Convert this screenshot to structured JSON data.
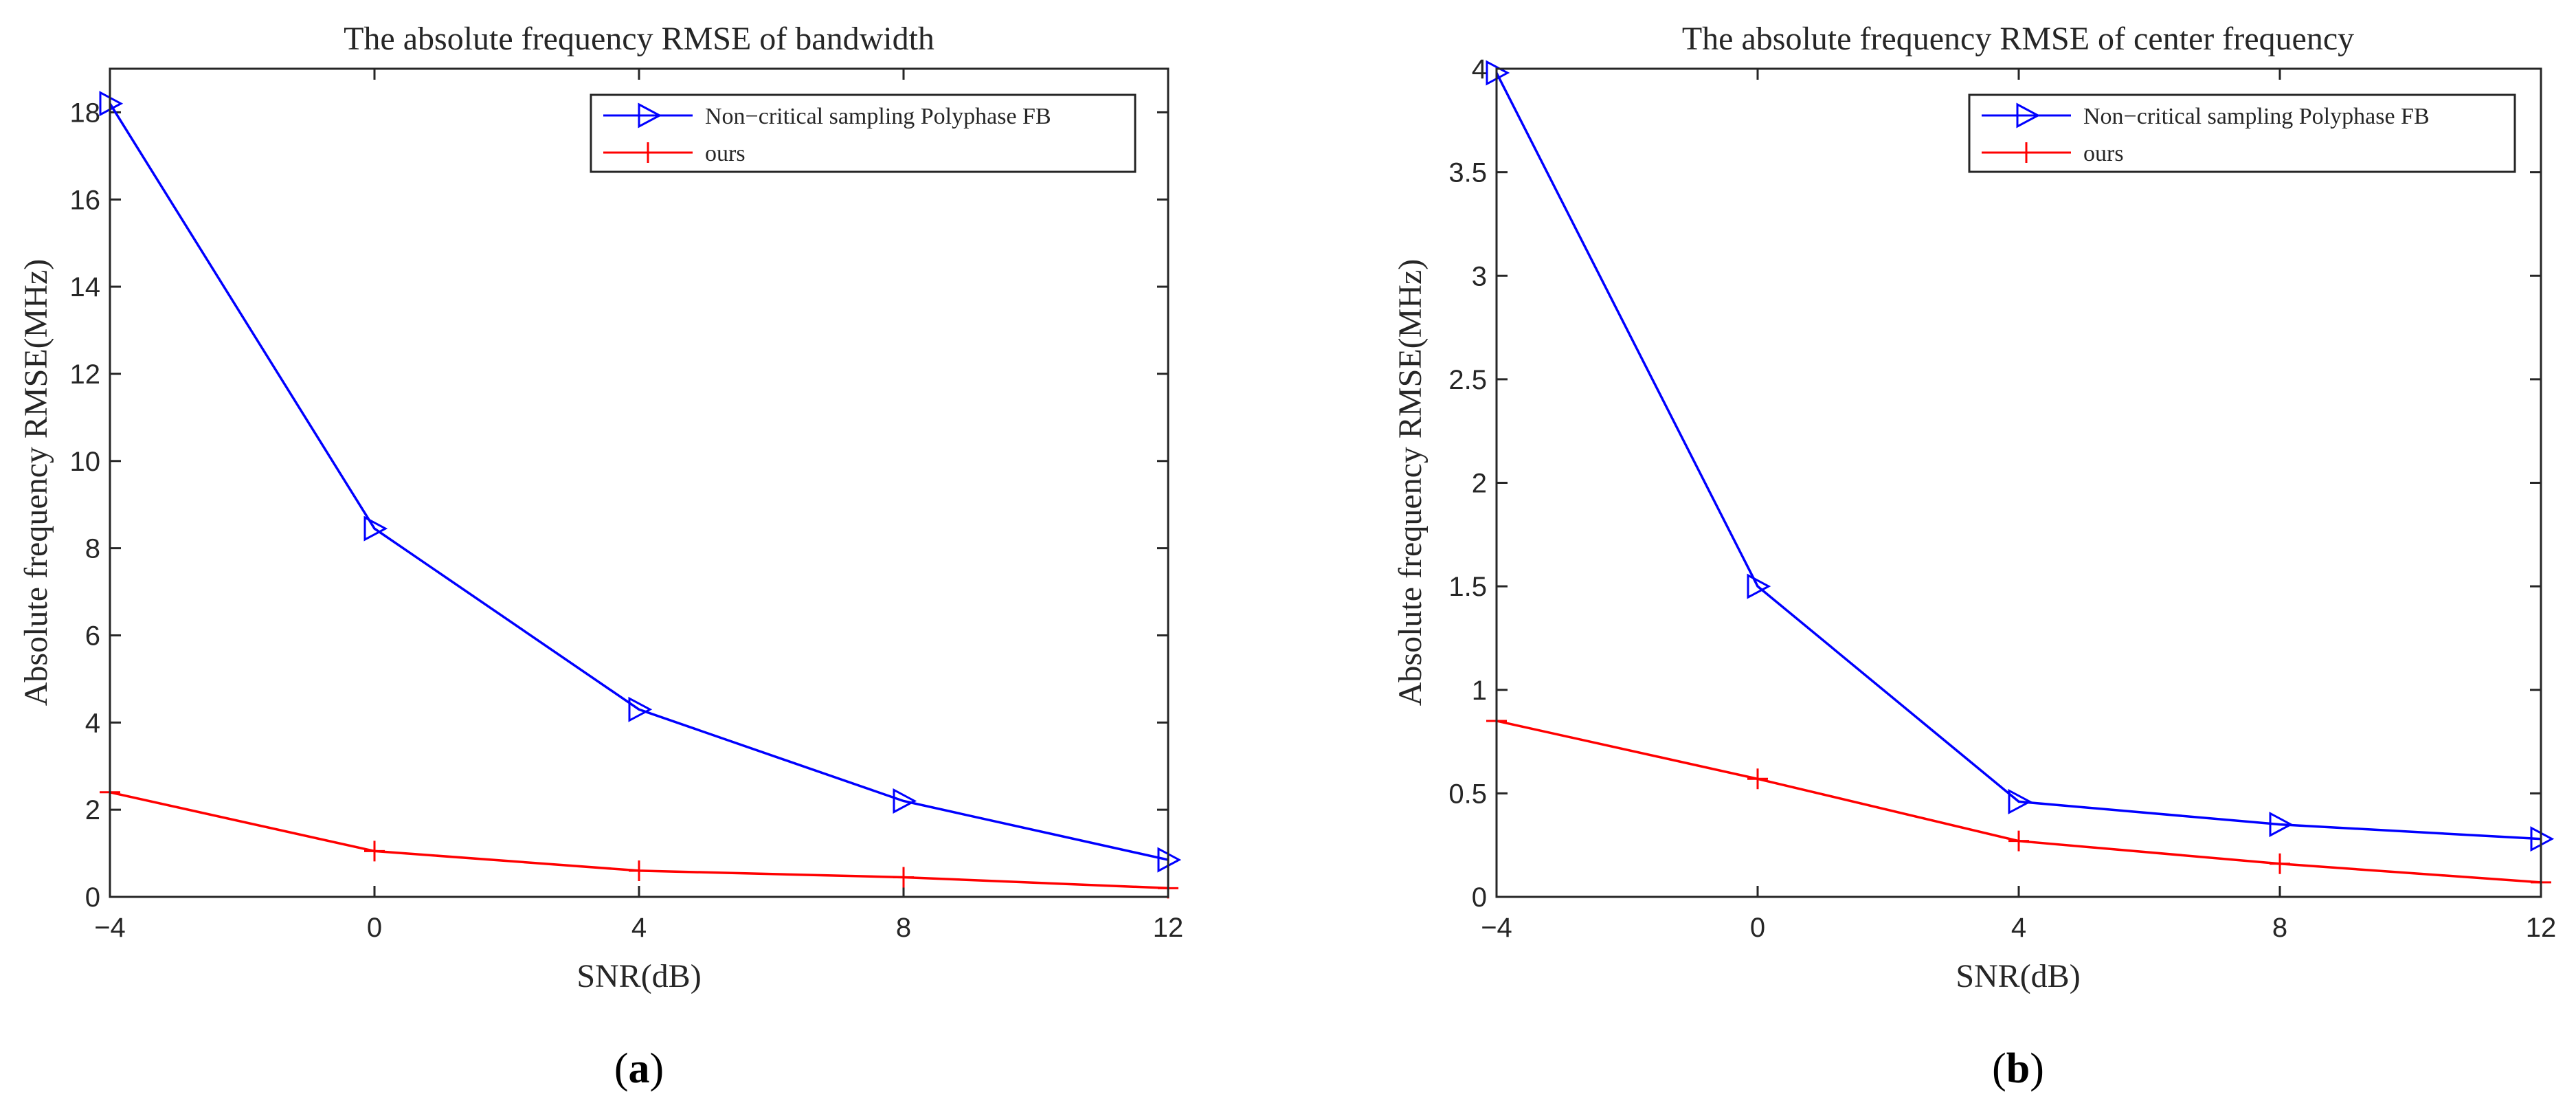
{
  "figure": {
    "captions": [
      {
        "open": "(",
        "letter": "a",
        "close": ")"
      },
      {
        "open": "(",
        "letter": "b",
        "close": ")"
      }
    ]
  },
  "chart_data": [
    {
      "type": "line",
      "title": "The absolute frequency RMSE of bandwidth",
      "xlabel": "SNR(dB)",
      "ylabel": "Absolute frequency RMSE(MHz)",
      "x": [
        -4,
        0,
        4,
        8,
        12
      ],
      "xlim": [
        -4,
        12
      ],
      "ylim": [
        0,
        19
      ],
      "xticks": [
        -4,
        0,
        4,
        8,
        12
      ],
      "xtick_labels": [
        "−4",
        "0",
        "4",
        "8",
        "12"
      ],
      "yticks": [
        0,
        2,
        4,
        6,
        8,
        10,
        12,
        14,
        16,
        18
      ],
      "ytick_labels": [
        "0",
        "2",
        "4",
        "6",
        "8",
        "10",
        "12",
        "14",
        "16",
        "18"
      ],
      "legend_position": "top-right",
      "series": [
        {
          "name": "Non−critical sampling Polyphase FB",
          "color": "#0000ff",
          "marker": "triangle-right",
          "values": [
            18.2,
            8.45,
            4.3,
            2.2,
            0.85
          ]
        },
        {
          "name": "ours",
          "color": "#ff0000",
          "marker": "plus",
          "values": [
            2.4,
            1.05,
            0.6,
            0.45,
            0.2
          ]
        }
      ]
    },
    {
      "type": "line",
      "title": "The absolute frequency RMSE of center frequency",
      "xlabel": "SNR(dB)",
      "ylabel": "Absolute frequency RMSE(MHz)",
      "x": [
        -4,
        0,
        4,
        8,
        12
      ],
      "xlim": [
        -4,
        12
      ],
      "ylim": [
        0,
        4
      ],
      "xticks": [
        -4,
        0,
        4,
        8,
        12
      ],
      "xtick_labels": [
        "−4",
        "0",
        "4",
        "8",
        "12"
      ],
      "yticks": [
        0,
        0.5,
        1,
        1.5,
        2,
        2.5,
        3,
        3.5,
        4
      ],
      "ytick_labels": [
        "0",
        "0.5",
        "1",
        "1.5",
        "2",
        "2.5",
        "3",
        "3.5",
        "4"
      ],
      "legend_position": "top-right",
      "series": [
        {
          "name": "Non−critical sampling Polyphase FB",
          "color": "#0000ff",
          "marker": "triangle-right",
          "values": [
            3.98,
            1.5,
            0.46,
            0.35,
            0.28
          ]
        },
        {
          "name": "ours",
          "color": "#ff0000",
          "marker": "plus",
          "values": [
            0.85,
            0.57,
            0.27,
            0.16,
            0.07
          ]
        }
      ]
    }
  ]
}
